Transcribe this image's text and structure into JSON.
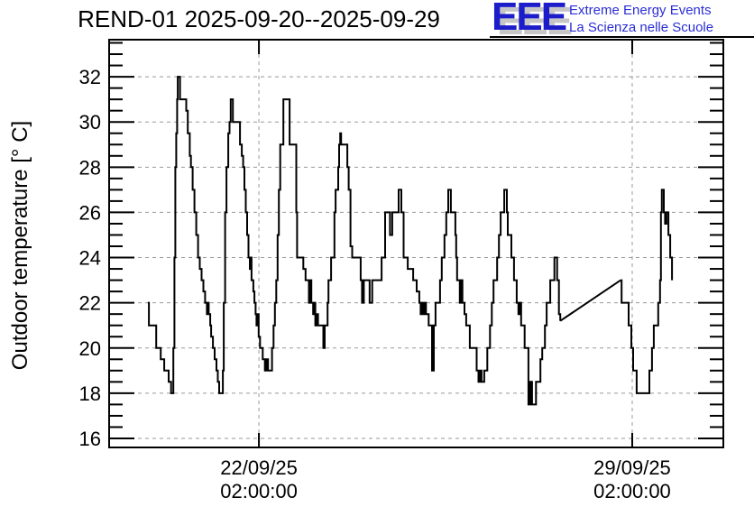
{
  "header": {
    "title": "REND-01 2025-09-20--2025-09-29",
    "logo": {
      "acronym": "EEE",
      "line1": "Extreme Energy Events",
      "line2": "La Scienza nelle Scuole",
      "blue": "#1c1ccb",
      "shadow_gray": "#c6c6c6"
    }
  },
  "chart_data": {
    "type": "line",
    "title": "REND-01 2025-09-20--2025-09-29",
    "xlabel": "",
    "ylabel": "Outdoor temperature [° C]",
    "ylim": [
      15.6,
      33.64
    ],
    "xlim_hours": [
      -17.4,
      259.0
    ],
    "x_epoch": "hours since 2025-09-20 00:00:00",
    "y_major_ticks": [
      16,
      18,
      20,
      22,
      24,
      26,
      28,
      30,
      32
    ],
    "y_minor_step": 0.5,
    "x_ticks": [
      {
        "hours": 50,
        "label_date": "22/09/25",
        "label_time": "02:00:00"
      },
      {
        "hours": 218,
        "label_date": "29/09/25",
        "label_time": "02:00:00"
      }
    ],
    "grid": true,
    "grid_color": "#999999",
    "line_color": "#000000",
    "legend": null,
    "segments": [
      {
        "mode": "steps",
        "points": [
          [
            0,
            22
          ],
          [
            0.5,
            21
          ],
          [
            3.8,
            20
          ],
          [
            5.8,
            19.5
          ],
          [
            7.4,
            19
          ],
          [
            9.4,
            18.5
          ],
          [
            10.5,
            18
          ],
          [
            11.5,
            20
          ],
          [
            12.0,
            24
          ],
          [
            12.4,
            28
          ],
          [
            12.8,
            29.5
          ],
          [
            13.2,
            31
          ],
          [
            13.5,
            32
          ],
          [
            14.5,
            31
          ],
          [
            17.3,
            30.5
          ],
          [
            18.0,
            29.5
          ],
          [
            18.9,
            28.5
          ],
          [
            19.4,
            28
          ],
          [
            20.2,
            27
          ],
          [
            21.0,
            26
          ],
          [
            21.8,
            25
          ],
          [
            22.6,
            24
          ],
          [
            23.4,
            23.5
          ],
          [
            24.2,
            23
          ],
          [
            25.0,
            22.5
          ],
          [
            25.8,
            22
          ],
          [
            26.6,
            21.5
          ],
          [
            27.0,
            22
          ],
          [
            27.4,
            21.5
          ],
          [
            28.1,
            21
          ],
          [
            28.5,
            20.5
          ],
          [
            29.3,
            20
          ],
          [
            30.1,
            19.5
          ],
          [
            30.9,
            19
          ],
          [
            31.5,
            18.5
          ],
          [
            32.1,
            18
          ],
          [
            33.8,
            19
          ],
          [
            34.2,
            22
          ],
          [
            34.8,
            26
          ],
          [
            35.4,
            28
          ],
          [
            36.2,
            29.5
          ],
          [
            36.8,
            30
          ],
          [
            37.3,
            31
          ],
          [
            38.3,
            30
          ],
          [
            41.5,
            29
          ],
          [
            42.3,
            28.5
          ],
          [
            42.9,
            28
          ],
          [
            43.5,
            27
          ],
          [
            44.1,
            26
          ],
          [
            44.7,
            25
          ],
          [
            45.3,
            24
          ],
          [
            45.9,
            23.5
          ],
          [
            46.3,
            24
          ],
          [
            46.7,
            23
          ],
          [
            47.5,
            22.5
          ],
          [
            48.0,
            22
          ],
          [
            48.5,
            21.5
          ],
          [
            48.9,
            21
          ],
          [
            49.3,
            21.5
          ],
          [
            49.9,
            20.5
          ],
          [
            50.5,
            20
          ],
          [
            51.7,
            19.5
          ],
          [
            52.7,
            19
          ],
          [
            53.5,
            19.5
          ],
          [
            54.1,
            19
          ],
          [
            55.9,
            20
          ],
          [
            56.6,
            21
          ],
          [
            57.2,
            22
          ],
          [
            57.8,
            23
          ],
          [
            58.4,
            25
          ],
          [
            59.0,
            27
          ],
          [
            59.6,
            29
          ],
          [
            61.0,
            31
          ],
          [
            63.8,
            29
          ],
          [
            66.8,
            26
          ],
          [
            67.2,
            24
          ],
          [
            70.0,
            23.5
          ],
          [
            71.0,
            23
          ],
          [
            72.5,
            22
          ],
          [
            73.0,
            23
          ],
          [
            73.6,
            22
          ],
          [
            74.4,
            21.5
          ],
          [
            74.8,
            22
          ],
          [
            75.4,
            21
          ],
          [
            76.0,
            21.5
          ],
          [
            76.6,
            21
          ],
          [
            79.0,
            20
          ],
          [
            79.6,
            21
          ],
          [
            80.9,
            22
          ],
          [
            81.3,
            23
          ],
          [
            82.5,
            24
          ],
          [
            84.0,
            26
          ],
          [
            84.5,
            27
          ],
          [
            85.7,
            28
          ],
          [
            86.1,
            29
          ],
          [
            86.6,
            29.5
          ],
          [
            87.0,
            29
          ],
          [
            89.8,
            28
          ],
          [
            90.4,
            27
          ],
          [
            91.2,
            24.5
          ],
          [
            92.0,
            24
          ],
          [
            95.8,
            23
          ],
          [
            96.4,
            22
          ],
          [
            97.2,
            23
          ],
          [
            99.8,
            22
          ],
          [
            101.0,
            23
          ],
          [
            105.2,
            24
          ],
          [
            106.8,
            26
          ],
          [
            109.0,
            25
          ],
          [
            110.0,
            26
          ],
          [
            112.9,
            27
          ],
          [
            114.1,
            26
          ],
          [
            115.1,
            24
          ],
          [
            117.0,
            23.5
          ],
          [
            119.4,
            23
          ],
          [
            121.0,
            22.5
          ],
          [
            122.2,
            22
          ],
          [
            122.8,
            21.5
          ],
          [
            123.4,
            22
          ],
          [
            124.0,
            21.5
          ],
          [
            124.6,
            22
          ],
          [
            125.2,
            21.5
          ],
          [
            126.4,
            21
          ],
          [
            127.9,
            19
          ],
          [
            128.7,
            21
          ],
          [
            129.5,
            22
          ],
          [
            131.5,
            23
          ],
          [
            132.3,
            24
          ],
          [
            133.5,
            25
          ],
          [
            134.3,
            26
          ],
          [
            135.2,
            27
          ],
          [
            136.4,
            26
          ],
          [
            138.4,
            25
          ],
          [
            138.8,
            24
          ],
          [
            139.2,
            23
          ],
          [
            140.4,
            22
          ],
          [
            141.0,
            23
          ],
          [
            141.6,
            22
          ],
          [
            142.5,
            21.5
          ],
          [
            143.3,
            21
          ],
          [
            144.9,
            20
          ],
          [
            148.0,
            19
          ],
          [
            148.8,
            18.5
          ],
          [
            149.6,
            19
          ],
          [
            150.2,
            18.5
          ],
          [
            151.4,
            19
          ],
          [
            152.8,
            20
          ],
          [
            154.0,
            21
          ],
          [
            154.8,
            22
          ],
          [
            155.6,
            23
          ],
          [
            157.2,
            24
          ],
          [
            158.0,
            25
          ],
          [
            158.8,
            26
          ],
          [
            160.4,
            27
          ],
          [
            161.6,
            26
          ],
          [
            162.0,
            25
          ],
          [
            163.6,
            24
          ],
          [
            164.8,
            23
          ],
          [
            166.0,
            22
          ],
          [
            166.8,
            21.5
          ],
          [
            167.4,
            22
          ],
          [
            168.0,
            21
          ],
          [
            169.6,
            20
          ],
          [
            171.3,
            17.5
          ],
          [
            172.1,
            18.5
          ],
          [
            172.9,
            17.5
          ],
          [
            174.7,
            18.5
          ],
          [
            176.7,
            19.5
          ],
          [
            177.5,
            20
          ],
          [
            178.7,
            21
          ],
          [
            179.5,
            22
          ],
          [
            181.1,
            23
          ],
          [
            183.0,
            24
          ],
          [
            184.2,
            23
          ],
          [
            185.0,
            21.5
          ],
          [
            185.6,
            21.2
          ]
        ]
      },
      {
        "mode": "line",
        "points": [
          [
            185.6,
            21.2
          ],
          [
            212.8,
            23.0
          ]
        ]
      },
      {
        "mode": "steps",
        "points": [
          [
            212.8,
            23
          ],
          [
            213.2,
            22
          ],
          [
            216.4,
            21
          ],
          [
            217.6,
            20
          ],
          [
            218.4,
            19
          ],
          [
            220.0,
            18
          ],
          [
            225.7,
            19
          ],
          [
            226.9,
            20
          ],
          [
            227.7,
            21
          ],
          [
            229.7,
            22
          ],
          [
            230.5,
            23
          ],
          [
            230.9,
            26
          ],
          [
            231.3,
            27
          ],
          [
            232.2,
            26
          ],
          [
            232.8,
            25.5
          ],
          [
            233.4,
            26
          ],
          [
            234.3,
            25
          ],
          [
            235.1,
            24
          ],
          [
            235.9,
            23
          ]
        ]
      }
    ]
  }
}
